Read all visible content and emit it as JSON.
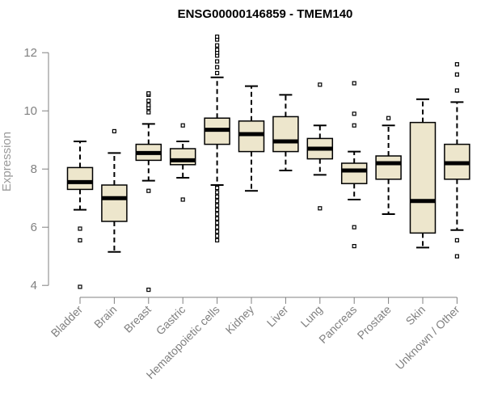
{
  "chart_data": {
    "type": "boxplot",
    "title": "ENSG00000146859 - TMEM140",
    "xlabel": "",
    "ylabel": "Expression",
    "ylim": [
      3.7,
      12.7
    ],
    "yticks": [
      4,
      6,
      8,
      10,
      12
    ],
    "colors": {
      "box_fill": "#ede6cc",
      "stroke": "#000000",
      "axis": "#808080"
    },
    "series": [
      {
        "name": "Bladder",
        "q1": 7.3,
        "median": 7.55,
        "q3": 8.05,
        "whisker_low": 6.6,
        "whisker_high": 8.95,
        "outliers": [
          5.95,
          5.55,
          3.95
        ]
      },
      {
        "name": "Brain",
        "q1": 6.2,
        "median": 7.0,
        "q3": 7.45,
        "whisker_low": 5.15,
        "whisker_high": 8.55,
        "outliers": [
          9.3
        ]
      },
      {
        "name": "Breast",
        "q1": 8.3,
        "median": 8.55,
        "q3": 8.85,
        "whisker_low": 7.6,
        "whisker_high": 9.55,
        "outliers": [
          7.25,
          3.85,
          9.95,
          10.1,
          10.2,
          10.35,
          10.55,
          10.6
        ]
      },
      {
        "name": "Gastric",
        "q1": 8.15,
        "median": 8.3,
        "q3": 8.7,
        "whisker_low": 7.7,
        "whisker_high": 8.95,
        "outliers": [
          9.5,
          6.95
        ]
      },
      {
        "name": "Hematopoietic cells",
        "q1": 8.85,
        "median": 9.35,
        "q3": 9.75,
        "whisker_low": 7.45,
        "whisker_high": 11.15,
        "outliers": [
          11.3,
          11.5,
          11.7,
          11.9,
          12.0,
          12.1,
          12.25,
          12.45,
          12.55,
          7.35,
          7.2,
          7.05,
          6.9,
          6.75,
          6.6,
          6.45,
          6.3,
          6.15,
          6.0,
          5.85,
          5.7,
          5.55
        ]
      },
      {
        "name": "Kidney",
        "q1": 8.6,
        "median": 9.2,
        "q3": 9.65,
        "whisker_low": 7.25,
        "whisker_high": 10.85,
        "outliers": []
      },
      {
        "name": "Liver",
        "q1": 8.6,
        "median": 8.95,
        "q3": 9.8,
        "whisker_low": 7.95,
        "whisker_high": 10.55,
        "outliers": []
      },
      {
        "name": "Lung",
        "q1": 8.35,
        "median": 8.7,
        "q3": 9.05,
        "whisker_low": 7.8,
        "whisker_high": 9.5,
        "outliers": [
          10.9,
          6.65
        ]
      },
      {
        "name": "Pancreas",
        "q1": 7.5,
        "median": 7.95,
        "q3": 8.2,
        "whisker_low": 6.95,
        "whisker_high": 8.6,
        "outliers": [
          10.95,
          9.9,
          9.5,
          6.0,
          5.35
        ]
      },
      {
        "name": "Prostate",
        "q1": 7.65,
        "median": 8.2,
        "q3": 8.45,
        "whisker_low": 6.45,
        "whisker_high": 9.5,
        "outliers": [
          9.75
        ]
      },
      {
        "name": "Skin",
        "q1": 5.8,
        "median": 6.9,
        "q3": 9.6,
        "whisker_low": 5.3,
        "whisker_high": 10.4,
        "outliers": []
      },
      {
        "name": "Unknown / Other",
        "q1": 7.65,
        "median": 8.2,
        "q3": 8.85,
        "whisker_low": 5.9,
        "whisker_high": 10.3,
        "outliers": [
          11.6,
          11.25,
          10.7,
          5.55,
          5.0
        ]
      }
    ]
  }
}
